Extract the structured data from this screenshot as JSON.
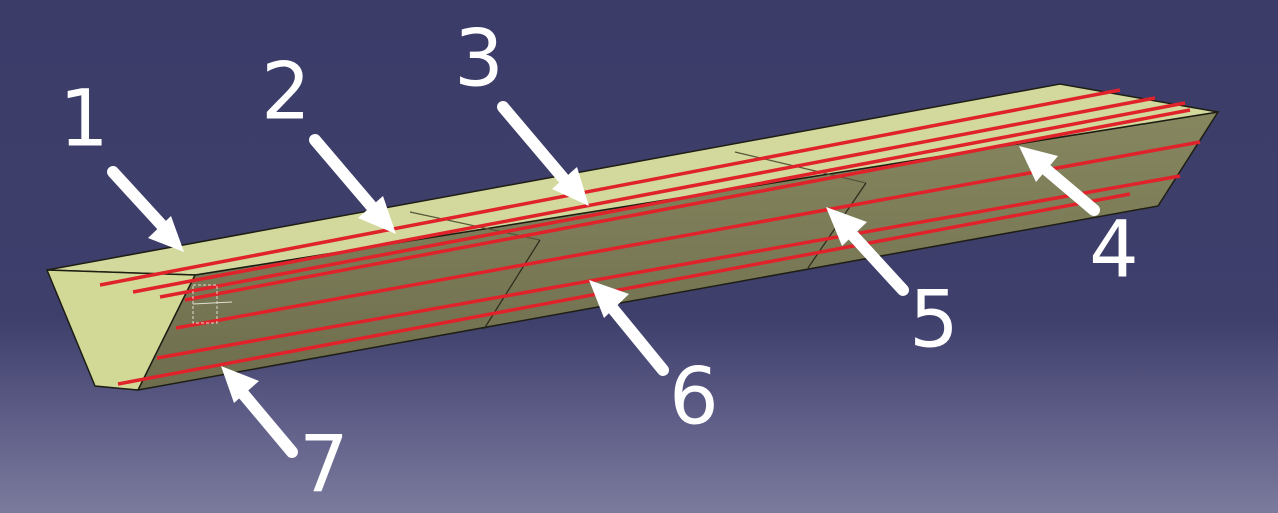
{
  "viewport": {
    "background_top": "#3c3c69",
    "background_bottom": "#7b7b9d"
  },
  "beam": {
    "top_face_color": "#d3d99c",
    "side_face_color": "#7b7b58",
    "end_face_color": "#d2d996",
    "edge_color": "#1e1e14",
    "rebar_color": "#e0232b"
  },
  "callouts": [
    {
      "id": "1",
      "label": "1"
    },
    {
      "id": "2",
      "label": "2"
    },
    {
      "id": "3",
      "label": "3"
    },
    {
      "id": "4",
      "label": "4"
    },
    {
      "id": "5",
      "label": "5"
    },
    {
      "id": "6",
      "label": "6"
    },
    {
      "id": "7",
      "label": "7"
    }
  ]
}
